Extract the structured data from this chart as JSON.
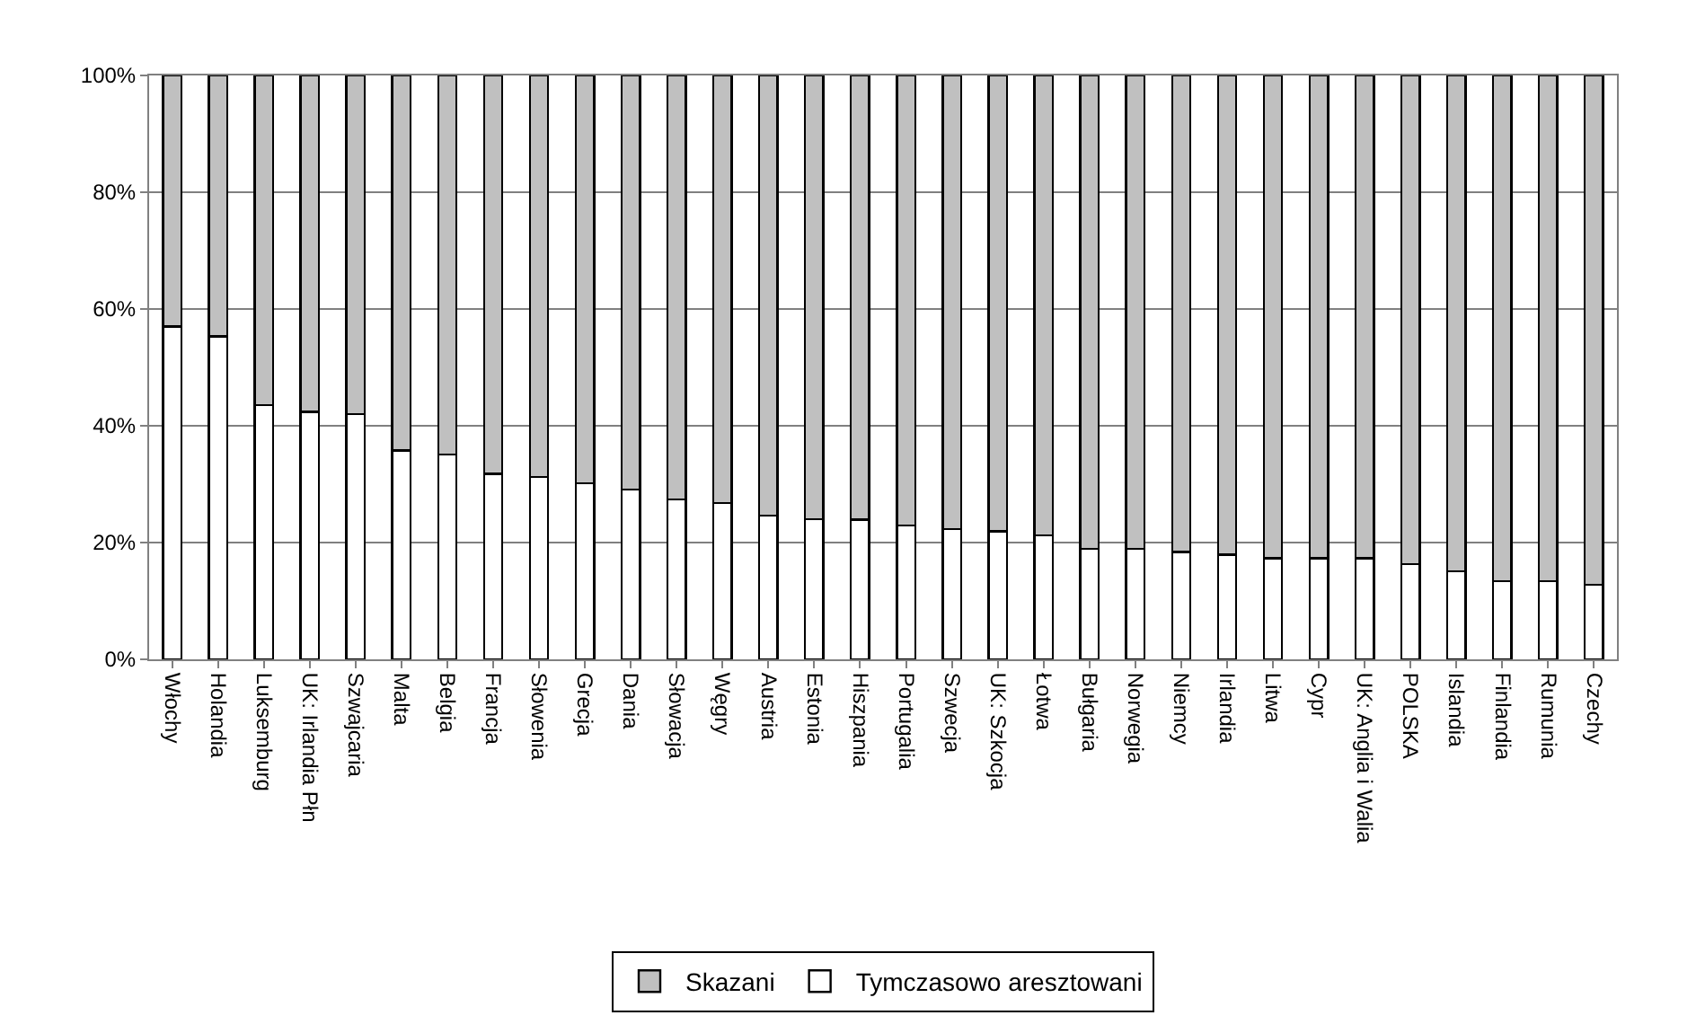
{
  "chart_data": {
    "type": "bar",
    "stacked": true,
    "categories": [
      "Włochy",
      "Holandia",
      "Luksemburg",
      "UK: Irlandia Płn",
      "Szwajcaria",
      "Malta",
      "Belgia",
      "Francja",
      "Słowenia",
      "Grecja",
      "Dania",
      "Słowacja",
      "Węgry",
      "Austria",
      "Estonia",
      "Hiszpania",
      "Portugalia",
      "Szwecja",
      "UK: Szkocja",
      "Łotwa",
      "Bułgaria",
      "Norwegia",
      "Niemcy",
      "Irlandia",
      "Litwa",
      "Cypr",
      "UK: Anglia i Walia",
      "POLSKA",
      "Islandia",
      "Finlandia",
      "Rumunia",
      "Czechy"
    ],
    "series": [
      {
        "name": "Tymczasowo aresztowani",
        "color": "#ffffff",
        "values": [
          57.0,
          55.3,
          43.5,
          42.4,
          42.0,
          35.8,
          35.1,
          31.8,
          31.2,
          30.2,
          29.1,
          27.4,
          26.8,
          24.6,
          24.0,
          23.9,
          22.9,
          22.3,
          21.9,
          21.2,
          18.9,
          18.9,
          18.4,
          17.9,
          17.3,
          17.3,
          17.3,
          16.3,
          15.1,
          13.4,
          13.4,
          12.8
        ]
      },
      {
        "name": "Skazani",
        "color": "#c0c0c0",
        "values": [
          43.0,
          44.7,
          56.5,
          57.6,
          58.0,
          64.2,
          64.9,
          68.2,
          68.8,
          69.8,
          70.9,
          72.6,
          73.2,
          75.4,
          76.0,
          76.1,
          77.1,
          77.7,
          78.1,
          78.8,
          81.1,
          81.1,
          81.6,
          82.1,
          82.7,
          82.7,
          82.7,
          83.7,
          84.9,
          86.6,
          86.6,
          87.2
        ]
      }
    ],
    "ylim": [
      0,
      100
    ],
    "yticks": [
      {
        "value": 0,
        "label": "0%"
      },
      {
        "value": 20,
        "label": "20%"
      },
      {
        "value": 40,
        "label": "40%"
      },
      {
        "value": 60,
        "label": "60%"
      },
      {
        "value": 80,
        "label": "80%"
      },
      {
        "value": 100,
        "label": "100%"
      }
    ],
    "grid": "y",
    "legend": "bottom"
  }
}
